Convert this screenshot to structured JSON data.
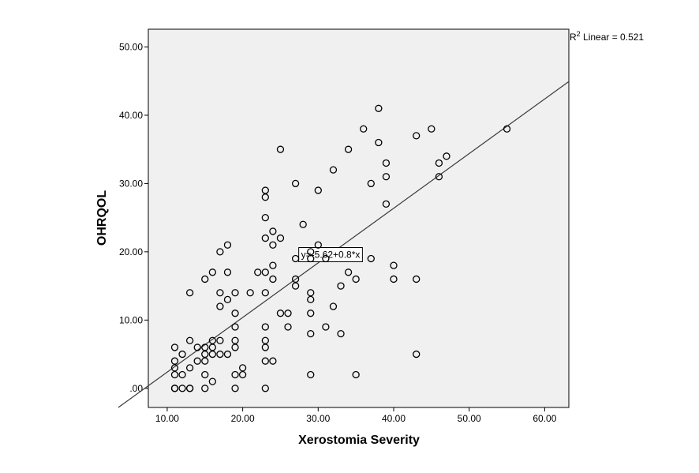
{
  "chart_data": {
    "type": "scatter",
    "xlabel": "Xerostomia Severity",
    "ylabel": "OHRQOL",
    "xlim": [
      7.5,
      63.2
    ],
    "ylim": [
      -2.8,
      52.6
    ],
    "x_ticks": [
      10,
      20,
      30,
      40,
      50,
      60
    ],
    "y_ticks": [
      0,
      10,
      20,
      30,
      40,
      50
    ],
    "x_tick_labels": [
      "10.00",
      "20.00",
      "30.00",
      "40.00",
      "50.00",
      "60.00"
    ],
    "y_tick_labels": [
      ".00",
      "10.00",
      "20.00",
      "30.00",
      "40.00",
      "50.00"
    ],
    "grid": false,
    "background": "#f0f0f0",
    "fit_line": {
      "intercept": -5.62,
      "slope": 0.8,
      "equation": "y=-5.62+0.8*x",
      "equation_x": 31.5,
      "r2_prefix": "R",
      "r2_superscript": "2",
      "r2_text": " Linear = 0.521"
    },
    "points": [
      [
        11,
        6
      ],
      [
        11,
        4
      ],
      [
        11,
        3
      ],
      [
        11,
        2
      ],
      [
        11,
        0
      ],
      [
        11,
        0
      ],
      [
        12,
        5
      ],
      [
        12,
        2
      ],
      [
        12,
        0
      ],
      [
        13,
        14
      ],
      [
        13,
        7
      ],
      [
        13,
        3
      ],
      [
        13,
        0
      ],
      [
        13,
        0
      ],
      [
        14,
        6
      ],
      [
        14,
        4
      ],
      [
        15,
        16
      ],
      [
        15,
        6
      ],
      [
        15,
        5
      ],
      [
        15,
        4
      ],
      [
        15,
        2
      ],
      [
        15,
        0
      ],
      [
        16,
        17
      ],
      [
        16,
        7
      ],
      [
        16,
        6
      ],
      [
        16,
        5
      ],
      [
        16,
        1
      ],
      [
        17,
        20
      ],
      [
        17,
        14
      ],
      [
        17,
        12
      ],
      [
        17,
        7
      ],
      [
        17,
        5
      ],
      [
        18,
        21
      ],
      [
        18,
        17
      ],
      [
        18,
        13
      ],
      [
        18,
        5
      ],
      [
        19,
        14
      ],
      [
        19,
        11
      ],
      [
        19,
        9
      ],
      [
        19,
        7
      ],
      [
        19,
        6
      ],
      [
        19,
        2
      ],
      [
        19,
        0
      ],
      [
        20,
        3
      ],
      [
        20,
        2
      ],
      [
        21,
        14
      ],
      [
        22,
        17
      ],
      [
        23,
        29
      ],
      [
        23,
        28
      ],
      [
        23,
        25
      ],
      [
        23,
        22
      ],
      [
        23,
        17
      ],
      [
        23,
        14
      ],
      [
        23,
        9
      ],
      [
        23,
        7
      ],
      [
        23,
        6
      ],
      [
        23,
        4
      ],
      [
        23,
        0
      ],
      [
        24,
        23
      ],
      [
        24,
        21
      ],
      [
        24,
        18
      ],
      [
        24,
        16
      ],
      [
        24,
        4
      ],
      [
        25,
        35
      ],
      [
        25,
        22
      ],
      [
        25,
        11
      ],
      [
        26,
        11
      ],
      [
        26,
        9
      ],
      [
        27,
        30
      ],
      [
        27,
        19
      ],
      [
        27,
        16
      ],
      [
        27,
        15
      ],
      [
        28,
        24
      ],
      [
        29,
        20
      ],
      [
        29,
        19
      ],
      [
        29,
        14
      ],
      [
        29,
        13
      ],
      [
        29,
        11
      ],
      [
        29,
        8
      ],
      [
        29,
        2
      ],
      [
        30,
        29
      ],
      [
        30,
        21
      ],
      [
        31,
        19
      ],
      [
        31,
        9
      ],
      [
        32,
        32
      ],
      [
        32,
        12
      ],
      [
        33,
        15
      ],
      [
        33,
        8
      ],
      [
        34,
        35
      ],
      [
        34,
        17
      ],
      [
        35,
        16
      ],
      [
        35,
        2
      ],
      [
        36,
        38
      ],
      [
        37,
        30
      ],
      [
        37,
        19
      ],
      [
        38,
        41
      ],
      [
        38,
        36
      ],
      [
        39,
        33
      ],
      [
        39,
        31
      ],
      [
        39,
        27
      ],
      [
        40,
        18
      ],
      [
        40,
        16
      ],
      [
        43,
        37
      ],
      [
        43,
        16
      ],
      [
        43,
        5
      ],
      [
        45,
        38
      ],
      [
        46,
        33
      ],
      [
        46,
        31
      ],
      [
        47,
        34
      ],
      [
        55,
        38
      ]
    ]
  }
}
